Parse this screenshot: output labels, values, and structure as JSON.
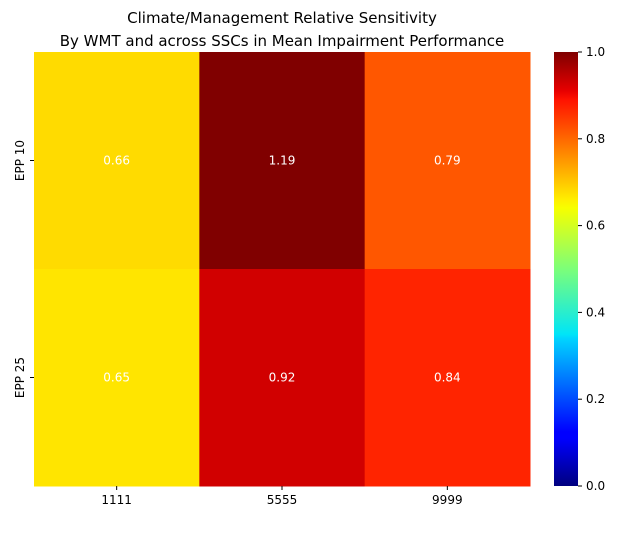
{
  "chart_data": {
    "type": "heatmap",
    "title_lines": [
      "Climate/Management Relative Sensitivity",
      "By WMT and across SSCs in Mean Impairment Performance"
    ],
    "x_categories": [
      "1111",
      "5555",
      "9999"
    ],
    "y_categories": [
      "EPP 10",
      "EPP 25"
    ],
    "values": [
      [
        0.66,
        1.19,
        0.79
      ],
      [
        0.65,
        0.92,
        0.84
      ]
    ],
    "value_labels": [
      [
        "0.66",
        "1.19",
        "0.79"
      ],
      [
        "0.65",
        "0.92",
        "0.84"
      ]
    ],
    "colormap": "jet",
    "vmin": 0,
    "vmax": 1,
    "colorbar_ticks": [
      0.0,
      0.2,
      0.4,
      0.6,
      0.8,
      1.0
    ],
    "colorbar_tick_labels": [
      "0.0",
      "0.2",
      "0.4",
      "0.6",
      "0.8",
      "1.0"
    ],
    "annotation_color": "#ffffff"
  }
}
